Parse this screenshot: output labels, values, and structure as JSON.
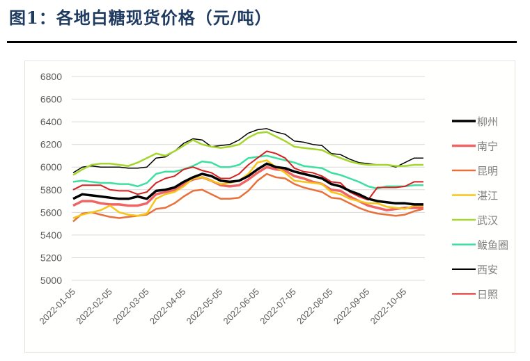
{
  "figure": {
    "title": "图1：各地白糖现货价格（元/吨）"
  },
  "chart_data": {
    "type": "line",
    "title": "各地白糖现货价格（元/吨）",
    "xlabel": "",
    "ylabel": "元/吨",
    "ylim": [
      5000,
      6800
    ],
    "yticks": [
      5000,
      5200,
      5400,
      5600,
      5800,
      6000,
      6200,
      6400,
      6600,
      6800
    ],
    "xtick_labels": [
      "2022-01-05",
      "2022-02-05",
      "2022-03-05",
      "2022-04-05",
      "2022-05-05",
      "2022-06-05",
      "2022-07-05",
      "2022-08-05",
      "2022-09-05",
      "2022-10-05"
    ],
    "grid": "horizontal",
    "legend_position": "right",
    "x": [
      "01-05",
      "01-13",
      "01-20",
      "01-28",
      "02-05",
      "02-13",
      "02-20",
      "02-28",
      "03-05",
      "03-13",
      "03-20",
      "03-28",
      "04-05",
      "04-13",
      "04-20",
      "04-28",
      "05-05",
      "05-13",
      "05-20",
      "05-28",
      "06-05",
      "06-13",
      "06-20",
      "06-28",
      "07-05",
      "07-13",
      "07-20",
      "07-28",
      "08-05",
      "08-13",
      "08-20",
      "08-28",
      "09-05",
      "09-13",
      "09-20",
      "09-28",
      "10-05",
      "10-13",
      "10-20"
    ],
    "series": [
      {
        "name": "柳州",
        "color": "#000000",
        "width": 3.5,
        "values": [
          5720,
          5760,
          5750,
          5740,
          5730,
          5720,
          5720,
          5740,
          5720,
          5790,
          5800,
          5820,
          5870,
          5910,
          5940,
          5920,
          5880,
          5870,
          5880,
          5920,
          5980,
          6030,
          6000,
          5990,
          5960,
          5940,
          5920,
          5900,
          5850,
          5830,
          5790,
          5760,
          5720,
          5700,
          5690,
          5680,
          5680,
          5670,
          5670
        ]
      },
      {
        "name": "南宁",
        "color": "#f06464",
        "width": 3.5,
        "values": [
          5660,
          5700,
          5700,
          5680,
          5670,
          5670,
          5660,
          5660,
          5680,
          5760,
          5780,
          5800,
          5850,
          5890,
          5910,
          5880,
          5840,
          5830,
          5840,
          5890,
          5950,
          6000,
          5980,
          5970,
          5920,
          5900,
          5870,
          5850,
          5800,
          5790,
          5740,
          5700,
          5660,
          5640,
          5620,
          5630,
          5640,
          5640,
          5640
        ]
      },
      {
        "name": "昆明",
        "color": "#e8703a",
        "width": 2.5,
        "values": [
          5520,
          5590,
          5600,
          5580,
          5560,
          5550,
          5560,
          5570,
          5580,
          5630,
          5640,
          5680,
          5740,
          5790,
          5800,
          5760,
          5720,
          5720,
          5730,
          5790,
          5880,
          5940,
          5910,
          5900,
          5850,
          5820,
          5800,
          5780,
          5730,
          5720,
          5680,
          5640,
          5610,
          5590,
          5580,
          5570,
          5580,
          5610,
          5630
        ]
      },
      {
        "name": "湛江",
        "color": "#f5c518",
        "width": 2.5,
        "values": [
          5550,
          5580,
          5600,
          5620,
          5660,
          5600,
          5580,
          5570,
          5590,
          5720,
          5760,
          5780,
          5830,
          5900,
          5910,
          5880,
          5850,
          5860,
          5880,
          5940,
          6040,
          6060,
          6000,
          5950,
          5880,
          5870,
          5860,
          5850,
          5780,
          5760,
          5720,
          5700,
          5680,
          5680,
          5650,
          5640,
          5630,
          5660,
          5660
        ]
      },
      {
        "name": "武汉",
        "color": "#a5d62e",
        "width": 2.5,
        "values": [
          5930,
          5980,
          6020,
          6030,
          6030,
          6020,
          6010,
          6040,
          6080,
          6120,
          6100,
          6140,
          6190,
          6240,
          6200,
          6180,
          6170,
          6180,
          6200,
          6260,
          6300,
          6310,
          6270,
          6230,
          6180,
          6170,
          6160,
          6150,
          6110,
          6080,
          6050,
          6030,
          6020,
          6020,
          6020,
          6010,
          6010,
          6020,
          6020
        ]
      },
      {
        "name": "鲅鱼圈",
        "color": "#3de0a0",
        "width": 2.5,
        "values": [
          5870,
          5880,
          5870,
          5860,
          5860,
          5850,
          5850,
          5830,
          5860,
          5940,
          5960,
          5960,
          5980,
          6010,
          6050,
          6040,
          6000,
          6000,
          6020,
          6080,
          6090,
          6100,
          6080,
          6060,
          6040,
          6010,
          6000,
          5990,
          5950,
          5930,
          5900,
          5870,
          5830,
          5810,
          5830,
          5830,
          5830,
          5840,
          5840
        ]
      },
      {
        "name": "西安",
        "color": "#000000",
        "width": 1.5,
        "values": [
          5950,
          6000,
          6010,
          6000,
          6000,
          6000,
          5990,
          5990,
          6000,
          6080,
          6090,
          6140,
          6210,
          6250,
          6240,
          6180,
          6190,
          6200,
          6240,
          6300,
          6330,
          6340,
          6310,
          6290,
          6230,
          6220,
          6200,
          6190,
          6120,
          6110,
          6070,
          6040,
          6030,
          6020,
          6020,
          6000,
          6040,
          6080,
          6080
        ]
      },
      {
        "name": "日照",
        "color": "#d42020",
        "width": 2.0,
        "values": [
          5800,
          5840,
          5840,
          5840,
          5800,
          5790,
          5790,
          5760,
          5780,
          5860,
          5900,
          5920,
          5980,
          6000,
          5970,
          5950,
          5900,
          5900,
          5940,
          6020,
          6080,
          6140,
          6120,
          6080,
          5990,
          5960,
          5950,
          5920,
          5870,
          5860,
          5780,
          5740,
          5710,
          5820,
          5820,
          5820,
          5830,
          5870,
          5870
        ]
      }
    ]
  }
}
